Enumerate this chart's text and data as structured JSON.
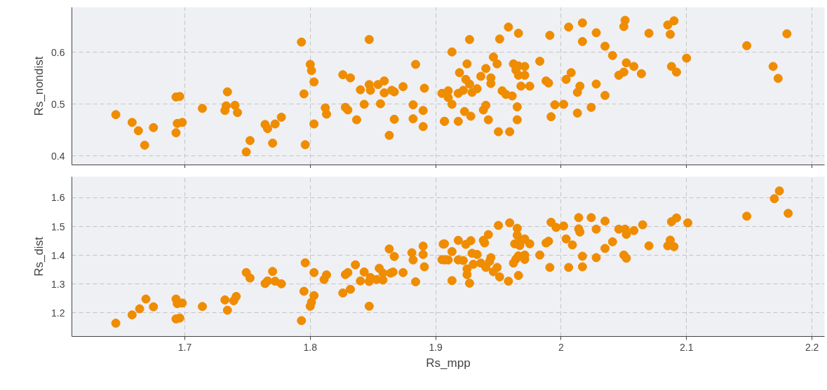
{
  "chart_data": [
    {
      "type": "scatter",
      "ylabel": "Rs_nondist",
      "color": "#ef8c00",
      "marker": "circle",
      "grid": true,
      "tick_labels": "y",
      "xlim": [
        1.61,
        2.21
      ],
      "xticks": [
        1.7,
        1.8,
        1.9,
        2,
        2.1,
        2.2
      ],
      "ylim": [
        0.383,
        0.687
      ],
      "yticks": [
        0.4,
        0.5,
        0.6
      ],
      "x": [
        1.645,
        1.658,
        1.663,
        1.668,
        1.675,
        1.693,
        1.696,
        1.694,
        1.698,
        1.693,
        1.714,
        1.734,
        1.733,
        1.74,
        1.732,
        1.742,
        1.749,
        1.752,
        1.764,
        1.766,
        1.772,
        1.777,
        1.77,
        1.793,
        1.795,
        1.796,
        1.8,
        1.801,
        1.803,
        1.803,
        1.812,
        1.813,
        1.826,
        1.832,
        1.828,
        1.83,
        1.837,
        1.84,
        1.843,
        1.847,
        1.847,
        1.848,
        1.854,
        1.859,
        1.859,
        1.856,
        1.865,
        1.867,
        1.863,
        1.867,
        1.874,
        1.884,
        1.882,
        1.891,
        1.89,
        1.882,
        1.89,
        1.907,
        1.905,
        1.91,
        1.91,
        1.913,
        1.907,
        1.913,
        1.918,
        1.922,
        1.918,
        1.923,
        1.928,
        1.927,
        1.925,
        1.919,
        1.924,
        1.927,
        1.933,
        1.929,
        1.936,
        1.94,
        1.944,
        1.944,
        1.946,
        1.949,
        1.951,
        1.958,
        1.966,
        1.962,
        1.964,
        1.966,
        1.966,
        1.971,
        1.971,
        1.94,
        1.938,
        1.942,
        1.95,
        1.959,
        1.965,
        1.965,
        1.953,
        1.956,
        1.961,
        1.968,
        1.975,
        1.983,
        1.991,
        1.988,
        1.99,
        1.992,
        1.995,
        2.002,
        2.006,
        2.017,
        2.017,
        2.004,
        2.008,
        2.015,
        2.013,
        2.028,
        2.035,
        2.024,
        2.013,
        2.028,
        2.035,
        2.041,
        2.052,
        2.058,
        2.046,
        2.05,
        2.064,
        2.05,
        2.051,
        2.07,
        2.085,
        2.09,
        2.087,
        2.088,
        2.092,
        2.1,
        2.148,
        2.169,
        2.173,
        2.18
      ],
      "values": [
        0.48,
        0.465,
        0.449,
        0.421,
        0.455,
        0.514,
        0.515,
        0.463,
        0.465,
        0.445,
        0.492,
        0.524,
        0.497,
        0.498,
        0.488,
        0.484,
        0.408,
        0.43,
        0.461,
        0.453,
        0.462,
        0.475,
        0.425,
        0.62,
        0.52,
        0.422,
        0.577,
        0.565,
        0.543,
        0.462,
        0.493,
        0.481,
        0.557,
        0.551,
        0.494,
        0.489,
        0.47,
        0.528,
        0.5,
        0.625,
        0.538,
        0.527,
        0.538,
        0.545,
        0.522,
        0.501,
        0.527,
        0.524,
        0.44,
        0.471,
        0.534,
        0.577,
        0.499,
        0.531,
        0.488,
        0.472,
        0.457,
        0.467,
        0.521,
        0.526,
        0.513,
        0.5,
        0.467,
        0.601,
        0.521,
        0.527,
        0.467,
        0.486,
        0.477,
        0.625,
        0.578,
        0.561,
        0.548,
        0.539,
        0.53,
        0.523,
        0.554,
        0.569,
        0.551,
        0.54,
        0.591,
        0.578,
        0.626,
        0.649,
        0.637,
        0.578,
        0.566,
        0.556,
        0.574,
        0.556,
        0.573,
        0.498,
        0.489,
        0.47,
        0.447,
        0.447,
        0.495,
        0.47,
        0.526,
        0.519,
        0.516,
        0.535,
        0.535,
        0.583,
        0.633,
        0.545,
        0.541,
        0.476,
        0.499,
        0.5,
        0.649,
        0.657,
        0.621,
        0.548,
        0.561,
        0.535,
        0.523,
        0.539,
        0.517,
        0.494,
        0.483,
        0.638,
        0.612,
        0.594,
        0.58,
        0.573,
        0.556,
        0.562,
        0.559,
        0.65,
        0.662,
        0.637,
        0.653,
        0.661,
        0.635,
        0.573,
        0.562,
        0.589,
        0.613,
        0.573,
        0.55,
        0.636
      ]
    },
    {
      "type": "scatter",
      "xlabel": "Rs_mpp",
      "ylabel": "Rs_dist",
      "color": "#ef8c00",
      "marker": "circle",
      "grid": true,
      "xlim": [
        1.61,
        2.21
      ],
      "xticks": [
        1.7,
        1.8,
        1.9,
        2,
        2.1,
        2.2
      ],
      "ylim": [
        1.118,
        1.673
      ],
      "yticks": [
        1.2,
        1.3,
        1.4,
        1.5,
        1.6
      ],
      "x": [
        1.645,
        1.658,
        1.664,
        1.669,
        1.675,
        1.693,
        1.694,
        1.698,
        1.693,
        1.696,
        1.714,
        1.732,
        1.741,
        1.739,
        1.734,
        1.749,
        1.752,
        1.764,
        1.766,
        1.77,
        1.772,
        1.777,
        1.793,
        1.795,
        1.796,
        1.803,
        1.803,
        1.801,
        1.8,
        1.811,
        1.813,
        1.826,
        1.828,
        1.83,
        1.832,
        1.836,
        1.84,
        1.843,
        1.847,
        1.847,
        1.848,
        1.853,
        1.855,
        1.858,
        1.858,
        1.863,
        1.864,
        1.866,
        1.867,
        1.874,
        1.881,
        1.882,
        1.884,
        1.89,
        1.89,
        1.891,
        1.906,
        1.905,
        1.907,
        1.91,
        1.907,
        1.913,
        1.913,
        1.918,
        1.918,
        1.922,
        1.924,
        1.928,
        1.925,
        1.925,
        1.927,
        1.929,
        1.933,
        1.93,
        1.936,
        1.938,
        1.939,
        1.94,
        1.942,
        1.944,
        1.943,
        1.946,
        1.949,
        1.95,
        1.951,
        1.958,
        1.959,
        1.962,
        1.964,
        1.965,
        1.965,
        1.963,
        1.966,
        1.966,
        1.967,
        1.968,
        1.971,
        1.971,
        1.971,
        1.975,
        1.983,
        1.988,
        1.99,
        1.991,
        1.992,
        1.996,
        2.002,
        2.004,
        2.009,
        2.006,
        2.014,
        2.015,
        2.014,
        2.017,
        2.017,
        2.024,
        2.028,
        2.028,
        2.035,
        2.035,
        2.041,
        2.046,
        2.051,
        2.052,
        2.05,
        2.052,
        2.058,
        2.065,
        2.07,
        2.085,
        2.087,
        2.09,
        2.088,
        2.092,
        2.101,
        2.148,
        2.17,
        2.174,
        2.181
      ],
      "values": [
        1.164,
        1.193,
        1.214,
        1.248,
        1.221,
        1.248,
        1.232,
        1.234,
        1.179,
        1.182,
        1.222,
        1.245,
        1.257,
        1.242,
        1.209,
        1.34,
        1.321,
        1.302,
        1.311,
        1.344,
        1.31,
        1.301,
        1.173,
        1.275,
        1.374,
        1.34,
        1.26,
        1.237,
        1.223,
        1.316,
        1.332,
        1.269,
        1.333,
        1.34,
        1.282,
        1.367,
        1.311,
        1.342,
        1.223,
        1.309,
        1.323,
        1.316,
        1.355,
        1.338,
        1.314,
        1.422,
        1.338,
        1.342,
        1.396,
        1.34,
        1.409,
        1.384,
        1.308,
        1.432,
        1.403,
        1.36,
        1.439,
        1.385,
        1.44,
        1.384,
        1.384,
        1.413,
        1.312,
        1.384,
        1.452,
        1.382,
        1.438,
        1.451,
        1.353,
        1.333,
        1.303,
        1.407,
        1.403,
        1.369,
        1.373,
        1.452,
        1.443,
        1.358,
        1.472,
        1.392,
        1.379,
        1.343,
        1.358,
        1.504,
        1.325,
        1.31,
        1.513,
        1.373,
        1.387,
        1.494,
        1.47,
        1.44,
        1.33,
        1.398,
        1.434,
        1.448,
        1.457,
        1.386,
        1.401,
        1.44,
        1.401,
        1.443,
        1.449,
        1.358,
        1.515,
        1.497,
        1.502,
        1.457,
        1.436,
        1.358,
        1.492,
        1.481,
        1.531,
        1.397,
        1.36,
        1.531,
        1.491,
        1.392,
        1.519,
        1.424,
        1.447,
        1.491,
        1.491,
        1.473,
        1.401,
        1.39,
        1.486,
        1.506,
        1.433,
        1.433,
        1.453,
        1.43,
        1.517,
        1.53,
        1.513,
        1.536,
        1.597,
        1.624,
        1.546
      ]
    }
  ]
}
